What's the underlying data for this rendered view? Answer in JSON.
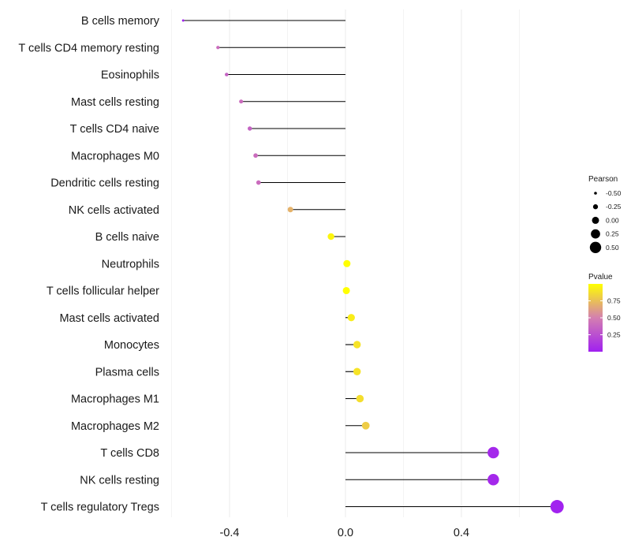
{
  "chart_data": {
    "type": "lollipop",
    "title": "",
    "xlabel": "",
    "ylabel": "",
    "xlim": [
      -0.6,
      0.74
    ],
    "x_ticks": [
      -0.4,
      0.0,
      0.4
    ],
    "x_tick_labels": [
      "-0.4",
      "0.0",
      "0.4"
    ],
    "grid": true,
    "categories": [
      "B cells memory",
      "T cells CD4 memory resting",
      "Eosinophils",
      "Mast cells resting",
      "T cells CD4 naive",
      "Macrophages M0",
      "Dendritic cells resting",
      "NK cells activated",
      "B cells naive",
      "Neutrophils",
      "T cells follicular helper",
      "Mast cells activated",
      "Monocytes",
      "Plasma cells",
      "Macrophages M1",
      "Macrophages M2",
      "T cells CD8",
      "NK cells resting",
      "T cells regulatory  Tregs"
    ],
    "pearson": [
      -0.56,
      -0.44,
      -0.41,
      -0.36,
      -0.33,
      -0.31,
      -0.3,
      -0.19,
      -0.05,
      0.005,
      0.003,
      0.02,
      0.04,
      0.04,
      0.05,
      0.07,
      0.51,
      0.51,
      0.73
    ],
    "pvalue": [
      0.01,
      0.4,
      0.35,
      0.4,
      0.35,
      0.4,
      0.4,
      0.7,
      0.96,
      1.0,
      1.0,
      0.93,
      0.89,
      0.89,
      0.87,
      0.8,
      0.04,
      0.04,
      0.01
    ],
    "legend_size": {
      "title": "Pearson",
      "values": [
        -0.5,
        -0.25,
        0.0,
        0.25,
        0.5
      ],
      "labels": [
        "-0.50",
        "-0.25",
        "0.00",
        "0.25",
        "0.50"
      ]
    },
    "legend_color": {
      "title": "Pvalue",
      "range": [
        0.0,
        1.0
      ],
      "ticks": [
        0.25,
        0.5,
        0.75
      ],
      "labels": [
        "0.25",
        "0.50",
        "0.75"
      ],
      "low_color": "#a020f0",
      "high_color": "#ffff00"
    },
    "stem_color": "#000000",
    "grid_color": "#ebebeb"
  }
}
